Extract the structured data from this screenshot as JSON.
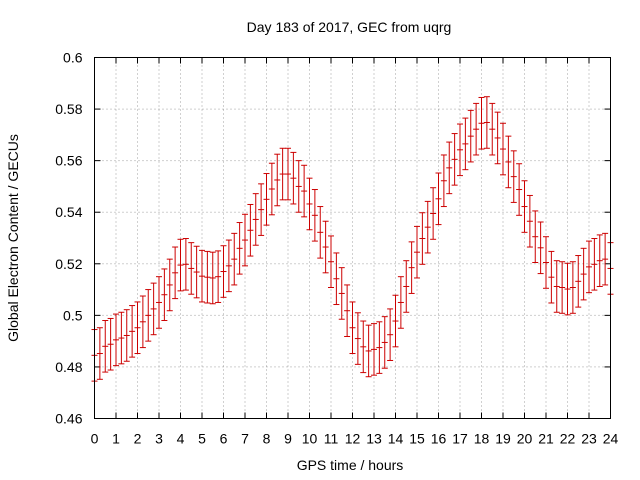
{
  "chart_data": {
    "type": "line",
    "style": "errorbars",
    "title": "Day 183 of 2017, GEC from uqrg",
    "xlabel": "GPS time / hours",
    "ylabel": "Global Electron Content / GECUs",
    "xlim": [
      0,
      24
    ],
    "ylim": [
      0.46,
      0.6
    ],
    "xticks": [
      "0",
      "1",
      "2",
      "3",
      "4",
      "5",
      "6",
      "7",
      "8",
      "9",
      "10",
      "11",
      "12",
      "13",
      "14",
      "15",
      "16",
      "17",
      "18",
      "19",
      "20",
      "21",
      "22",
      "23",
      "24"
    ],
    "yticks": [
      "0.46",
      "0.48",
      "0.5",
      "0.52",
      "0.54",
      "0.56",
      "0.58",
      "0.6"
    ],
    "grid": true,
    "color": "#cc0000",
    "error": 0.01,
    "series": [
      {
        "x": [
          0,
          0.25,
          0.5,
          0.75,
          1,
          1.25,
          1.5,
          1.75,
          2,
          2.25,
          2.5,
          2.75,
          3,
          3.25,
          3.5,
          3.75,
          4,
          4.25,
          4.5,
          4.75,
          5,
          5.25,
          5.5,
          5.75,
          6,
          6.25,
          6.5,
          6.75,
          7,
          7.25,
          7.5,
          7.75,
          8,
          8.25,
          8.5,
          8.75,
          9,
          9.25,
          9.5,
          9.75,
          10,
          10.25,
          10.5,
          10.75,
          11,
          11.25,
          11.5,
          11.75,
          12,
          12.25,
          12.5,
          12.75,
          13,
          13.25,
          13.5,
          13.75,
          14,
          14.25,
          14.5,
          14.75,
          15,
          15.25,
          15.5,
          15.75,
          16,
          16.25,
          16.5,
          16.75,
          17,
          17.25,
          17.5,
          17.75,
          18,
          18.25,
          18.5,
          18.75,
          19,
          19.25,
          19.5,
          19.75,
          20,
          20.25,
          20.5,
          20.75,
          21,
          21.25,
          21.5,
          21.75,
          22,
          22.25,
          22.5,
          22.75,
          23,
          23.25,
          23.5,
          23.75,
          24
        ],
        "y": [
          0.4845,
          0.4852,
          0.488,
          0.4888,
          0.4905,
          0.4912,
          0.4922,
          0.4938,
          0.4952,
          0.4975,
          0.5,
          0.5025,
          0.505,
          0.508,
          0.5118,
          0.5165,
          0.5195,
          0.5198,
          0.5182,
          0.5168,
          0.5152,
          0.5148,
          0.5145,
          0.515,
          0.517,
          0.5192,
          0.5218,
          0.526,
          0.5292,
          0.533,
          0.5372,
          0.541,
          0.545,
          0.549,
          0.5525,
          0.5548,
          0.5548,
          0.5532,
          0.55,
          0.5482,
          0.5432,
          0.5388,
          0.5322,
          0.5265,
          0.5208,
          0.5142,
          0.5085,
          0.5018,
          0.4952,
          0.491,
          0.4878,
          0.4862,
          0.4868,
          0.4875,
          0.4895,
          0.4925,
          0.4978,
          0.505,
          0.5112,
          0.5185,
          0.5245,
          0.5298,
          0.5342,
          0.5395,
          0.5452,
          0.5522,
          0.5572,
          0.5605,
          0.5642,
          0.5665,
          0.5695,
          0.5722,
          0.5745,
          0.5748,
          0.5722,
          0.5688,
          0.5645,
          0.5595,
          0.5538,
          0.5488,
          0.5422,
          0.5365,
          0.5305,
          0.5262,
          0.5205,
          0.5148,
          0.5112,
          0.5108,
          0.5102,
          0.5108,
          0.5132,
          0.516,
          0.5188,
          0.5198,
          0.5212,
          0.5218,
          0.5182
        ]
      }
    ]
  }
}
